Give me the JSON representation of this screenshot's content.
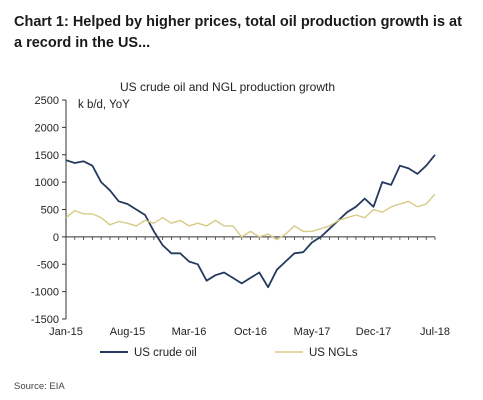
{
  "heading": "Chart 1: Helped by higher prices, total oil production growth is at a record in the US...",
  "source": "Source: EIA",
  "colors": {
    "crude": "#243a5e",
    "ngl": "#d8cb86",
    "axis": "#333333"
  },
  "chart_data": {
    "type": "line",
    "title": "US crude oil and NGL production growth",
    "xlabel": "",
    "ylabel": "k b/d, YoY",
    "ylim": [
      -1500,
      2500
    ],
    "yticks": [
      2500,
      2000,
      1500,
      1000,
      500,
      0,
      -500,
      -1000,
      -1500
    ],
    "x": [
      "Jan-15",
      "Feb-15",
      "Mar-15",
      "Apr-15",
      "May-15",
      "Jun-15",
      "Jul-15",
      "Aug-15",
      "Sep-15",
      "Oct-15",
      "Nov-15",
      "Dec-15",
      "Jan-16",
      "Feb-16",
      "Mar-16",
      "Apr-16",
      "May-16",
      "Jun-16",
      "Jul-16",
      "Aug-16",
      "Sep-16",
      "Oct-16",
      "Nov-16",
      "Dec-16",
      "Jan-17",
      "Feb-17",
      "Mar-17",
      "Apr-17",
      "May-17",
      "Jun-17",
      "Jul-17",
      "Aug-17",
      "Sep-17",
      "Oct-17",
      "Nov-17",
      "Dec-17",
      "Jan-18",
      "Feb-18",
      "Mar-18",
      "Apr-18",
      "May-18",
      "Jun-18",
      "Jul-18"
    ],
    "xticks": [
      "Jan-15",
      "Aug-15",
      "Mar-16",
      "Oct-16",
      "May-17",
      "Dec-17",
      "Jul-18"
    ],
    "grid": false,
    "legend": "bottom",
    "series": [
      {
        "name": "US crude oil",
        "values": [
          1400,
          1350,
          1380,
          1300,
          1000,
          850,
          650,
          600,
          500,
          400,
          100,
          -150,
          -300,
          -300,
          -450,
          -500,
          -800,
          -700,
          -650,
          -750,
          -850,
          -750,
          -650,
          -920,
          -600,
          -450,
          -300,
          -280,
          -100,
          0,
          150,
          300,
          450,
          550,
          700,
          550,
          1000,
          950,
          1300,
          1250,
          1150,
          1300,
          1500
        ]
      },
      {
        "name": "US NGLs",
        "values": [
          350,
          480,
          420,
          420,
          350,
          220,
          280,
          250,
          200,
          300,
          250,
          350,
          250,
          300,
          200,
          250,
          200,
          300,
          200,
          200,
          0,
          100,
          0,
          50,
          -50,
          50,
          200,
          100,
          100,
          150,
          200,
          300,
          350,
          400,
          350,
          500,
          450,
          550,
          600,
          650,
          550,
          600,
          780
        ]
      }
    ]
  }
}
